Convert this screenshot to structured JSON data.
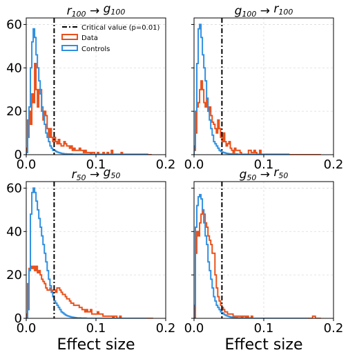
{
  "colors": {
    "data": "#e8501a",
    "controls": "#2f8fe0",
    "critical": "#000000",
    "grid": "#d9d9d9"
  },
  "legend": {
    "critical_label": "Critical value (p=0.01)",
    "data_label": "Data",
    "controls_label": "Controls"
  },
  "xlabel_text": "Effect size",
  "chart_data": [
    {
      "type": "step-histogram",
      "title": {
        "a": "r",
        "a_sub": "100",
        "arrow": "→",
        "b": "g",
        "b_sub": "100"
      },
      "xlim": [
        0,
        0.2
      ],
      "ylim": [
        0,
        63
      ],
      "xticks": [
        0,
        0.1,
        0.2
      ],
      "xtick_labels": [
        "0.0",
        "0.1",
        "0.2"
      ],
      "yticks": [
        0,
        20,
        40,
        60
      ],
      "ytick_labels": [
        "0",
        "20",
        "40",
        "60"
      ],
      "show_ytick_labels": true,
      "show_xlabel": false,
      "show_legend": true,
      "grid": true,
      "critical_value": 0.04,
      "bin_width": 0.002,
      "series": [
        {
          "name": "Data",
          "values": [
            3,
            16,
            20,
            14,
            28,
            24,
            42,
            30,
            22,
            30,
            30,
            20,
            16,
            20,
            18,
            12,
            8,
            12,
            8,
            6,
            8,
            6,
            5,
            7,
            5,
            4,
            4,
            6,
            5,
            4,
            4,
            3,
            4,
            2,
            3,
            2,
            2,
            2,
            3,
            2,
            2,
            1,
            2,
            1,
            1,
            1,
            0,
            1,
            1,
            0,
            0,
            1,
            0,
            0,
            0,
            1,
            0,
            0,
            1,
            0,
            0,
            2,
            0,
            0,
            0,
            0,
            0,
            0,
            1,
            0,
            0,
            0,
            0,
            0,
            0,
            0,
            0,
            0,
            0,
            0,
            0,
            0,
            0,
            0,
            0,
            0,
            0,
            0,
            0,
            0
          ]
        },
        {
          "name": "Controls",
          "values": [
            1,
            8,
            22,
            40,
            52,
            58,
            54,
            46,
            40,
            34,
            28,
            22,
            18,
            14,
            10,
            8,
            6,
            4,
            3,
            2,
            2,
            1.5,
            1.2,
            1,
            0.8,
            0.6,
            0.5,
            0.4,
            0.4,
            0.3,
            0.3,
            0.3,
            0.3,
            0.2,
            0.2,
            0.2,
            0.2,
            0.2,
            0.2,
            0.2,
            0.2,
            0.2,
            0.2,
            0.2,
            0.2,
            0.2,
            0.2,
            0.2,
            0.2,
            0.2,
            0.2,
            0.2,
            0.2,
            0.2,
            0.2,
            0.2,
            0.2,
            0.2,
            0.2,
            0.2,
            0.2,
            0.2,
            0.2,
            0.2,
            0.2,
            0.2,
            0.2,
            0.2,
            0.2,
            0.2,
            0.2,
            0.2,
            0.2,
            0.2,
            0.2,
            0.2,
            0.2,
            0.2,
            0.2,
            0.2,
            0.2,
            0.2,
            0.2,
            0.2,
            0.2,
            0.2,
            0.2
          ]
        }
      ]
    },
    {
      "type": "step-histogram",
      "title": {
        "a": "g",
        "a_sub": "100",
        "arrow": "→",
        "b": "r",
        "b_sub": "100"
      },
      "xlim": [
        0,
        0.2
      ],
      "ylim": [
        0,
        63
      ],
      "xticks": [
        0,
        0.1,
        0.2
      ],
      "xtick_labels": [
        "0.0",
        "0.1",
        "0.2"
      ],
      "yticks": [
        0,
        20,
        40,
        60
      ],
      "ytick_labels": [
        "0",
        "20",
        "40",
        "60"
      ],
      "show_ytick_labels": false,
      "show_xlabel": false,
      "show_legend": false,
      "grid": true,
      "critical_value": 0.04,
      "bin_width": 0.002,
      "series": [
        {
          "name": "Data",
          "values": [
            2,
            10,
            22,
            24,
            30,
            34,
            30,
            24,
            22,
            26,
            20,
            22,
            18,
            15,
            14,
            12,
            10,
            16,
            12,
            8,
            6,
            10,
            6,
            4,
            5,
            6,
            3,
            2,
            1,
            3,
            2,
            2,
            2,
            1,
            0,
            0,
            0,
            0,
            0,
            2,
            2,
            1,
            1,
            2,
            1,
            0,
            0,
            2,
            0,
            0,
            0,
            0,
            0,
            0,
            0,
            0,
            0,
            0,
            0,
            0,
            0,
            0,
            0,
            0,
            0,
            0,
            0,
            0,
            0,
            0,
            0,
            0,
            0,
            0,
            0,
            0,
            0,
            0,
            0,
            0,
            0,
            0,
            0,
            0,
            0,
            0,
            0,
            0,
            0,
            0,
            0
          ]
        },
        {
          "name": "Controls",
          "values": [
            4,
            20,
            42,
            58,
            60,
            54,
            46,
            40,
            34,
            26,
            20,
            16,
            12,
            9,
            6,
            5,
            4,
            3,
            2,
            1.5,
            1.2,
            1,
            0.8,
            0.6,
            0.5,
            0.4,
            0.4,
            0.3,
            0.3,
            0.3,
            0.3,
            0.2,
            0.2,
            0.2,
            0.2,
            0.2,
            0.2,
            0.2,
            0.2,
            0.2,
            0.2,
            0.2,
            0.2,
            0.2,
            0.2,
            0.2,
            0.2,
            0.2,
            0.2,
            0.2,
            0.2,
            0.2,
            0.2,
            0.2,
            0.2,
            0.2,
            0.2,
            0.2,
            0.2,
            0.2,
            0.2,
            0.2,
            0.2,
            0.2,
            0.2,
            0.2,
            0.2,
            0.2
          ]
        }
      ]
    },
    {
      "type": "step-histogram",
      "title": {
        "a": "r",
        "a_sub": "50",
        "arrow": "→",
        "b": "g",
        "b_sub": "50"
      },
      "xlim": [
        0,
        0.2
      ],
      "ylim": [
        0,
        63
      ],
      "xticks": [
        0,
        0.1,
        0.2
      ],
      "xtick_labels": [
        "0.0",
        "0.1",
        "0.2"
      ],
      "yticks": [
        0,
        20,
        40,
        60
      ],
      "ytick_labels": [
        "0",
        "20",
        "40",
        "60"
      ],
      "show_ytick_labels": true,
      "show_xlabel": true,
      "show_legend": false,
      "grid": true,
      "critical_value": 0.04,
      "bin_width": 0.002,
      "series": [
        {
          "name": "Data",
          "values": [
            2,
            16,
            23,
            24,
            23,
            24,
            22,
            24,
            21,
            22,
            20,
            18,
            17,
            16,
            14,
            13,
            13,
            14,
            12,
            13,
            13,
            12,
            14,
            14,
            13,
            12,
            11,
            11,
            10,
            9,
            9,
            8,
            7,
            7,
            6,
            6,
            6,
            6,
            5,
            5,
            4,
            4,
            3,
            4,
            3,
            3,
            4,
            2,
            2,
            2,
            2,
            3,
            2,
            2,
            2,
            1,
            1,
            1,
            1,
            1,
            1,
            1,
            0,
            1,
            1,
            0,
            0,
            1,
            0,
            0,
            0,
            0,
            0,
            0,
            0,
            0,
            0,
            0,
            0,
            0,
            0,
            0,
            0,
            0,
            0,
            0,
            0,
            0,
            0,
            0,
            0
          ]
        },
        {
          "name": "Controls",
          "values": [
            0.5,
            4,
            22,
            48,
            58,
            60,
            58,
            54,
            50,
            46,
            42,
            38,
            34,
            30,
            26,
            22,
            18,
            15,
            12,
            10,
            8,
            7,
            6,
            5,
            4,
            3,
            2.5,
            2,
            1.5,
            1.2,
            1,
            0.8,
            0.6,
            0.5,
            0.4,
            0.3,
            0.2,
            0.2,
            0.2,
            0.1,
            0.1,
            0.1,
            0.1,
            0,
            0,
            0,
            0,
            0,
            0,
            0,
            0,
            0,
            0,
            0,
            0,
            0,
            0,
            0,
            0,
            0,
            0,
            0,
            0,
            0,
            0,
            0,
            0,
            0,
            0,
            0,
            0,
            0,
            0,
            0,
            0,
            0,
            0,
            0,
            0,
            0,
            0,
            0,
            0,
            0,
            0,
            0
          ]
        }
      ]
    },
    {
      "type": "step-histogram",
      "title": {
        "a": "g",
        "a_sub": "50",
        "arrow": "→",
        "b": "r",
        "b_sub": "50"
      },
      "xlim": [
        0,
        0.2
      ],
      "ylim": [
        0,
        63
      ],
      "xticks": [
        0,
        0.1,
        0.2
      ],
      "xtick_labels": [
        "0.0",
        "0.1",
        "0.2"
      ],
      "yticks": [
        0,
        20,
        40,
        60
      ],
      "ytick_labels": [
        "0",
        "20",
        "40",
        "60"
      ],
      "show_ytick_labels": false,
      "show_xlabel": true,
      "show_legend": false,
      "grid": true,
      "critical_value": 0.04,
      "bin_width": 0.002,
      "series": [
        {
          "name": "Data",
          "values": [
            0,
            30,
            40,
            38,
            44,
            48,
            50,
            48,
            44,
            42,
            38,
            36,
            34,
            30,
            30,
            20,
            14,
            10,
            8,
            6,
            5,
            4,
            3,
            3,
            2,
            2,
            2,
            2,
            1,
            1,
            1,
            1,
            1,
            1,
            0,
            1,
            1,
            0,
            1,
            0,
            0,
            1,
            0,
            0,
            0,
            0,
            0,
            0,
            0,
            0,
            0,
            0,
            0,
            0,
            0,
            0,
            0,
            0,
            0,
            0,
            0,
            0,
            0,
            0,
            0,
            0,
            0,
            0,
            0,
            0,
            0,
            0,
            0,
            0,
            0,
            0,
            0,
            0,
            0,
            0,
            0,
            0,
            0,
            0,
            0,
            1,
            1,
            0,
            0,
            0,
            0
          ]
        },
        {
          "name": "Controls",
          "values": [
            6,
            42,
            52,
            56,
            57,
            55,
            50,
            44,
            38,
            34,
            26,
            22,
            18,
            14,
            10,
            8,
            6,
            5,
            4,
            3,
            2.5,
            2,
            1.5,
            1.2,
            1,
            0.8,
            0.6,
            0.5,
            0.4,
            0.3,
            0.3,
            0.2,
            0.2,
            0.2,
            0.2,
            0.1,
            0.1,
            0.1,
            0.1,
            0.1,
            0,
            0,
            0,
            0,
            0,
            0,
            0,
            0,
            0,
            0,
            0,
            0,
            0,
            0,
            0,
            0,
            0,
            0,
            0,
            0,
            0,
            0,
            0,
            0,
            0,
            0,
            0,
            0,
            0,
            0,
            0,
            0,
            0,
            0,
            0,
            0,
            0,
            0,
            0,
            0,
            0
          ]
        }
      ]
    }
  ]
}
